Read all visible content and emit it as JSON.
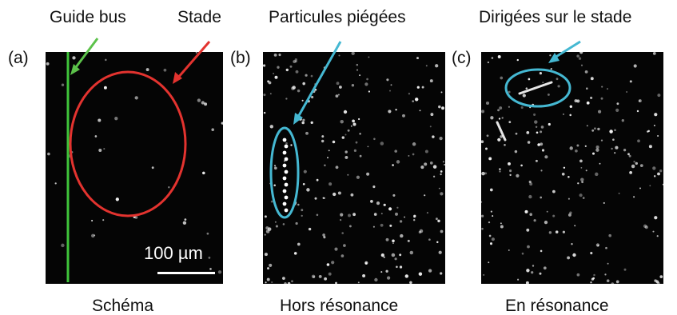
{
  "panels": [
    {
      "tag": "(a)",
      "top_labels": [
        "Guide bus",
        "Stade"
      ],
      "caption": "Schéma",
      "scale_label": "100 µm",
      "colors": {
        "guide": "#3fc43a",
        "stadium": "#e3332f",
        "arrow_guide": "#5cc24a",
        "arrow_stadium": "#e3332f"
      }
    },
    {
      "tag": "(b)",
      "top_label": "Particules piégées",
      "caption": "Hors résonance",
      "colors": {
        "highlight": "#45b8d2"
      }
    },
    {
      "tag": "(c)",
      "top_label": "Dirigées sur le stade",
      "caption": "En résonance",
      "colors": {
        "highlight": "#45b8d2"
      }
    }
  ]
}
